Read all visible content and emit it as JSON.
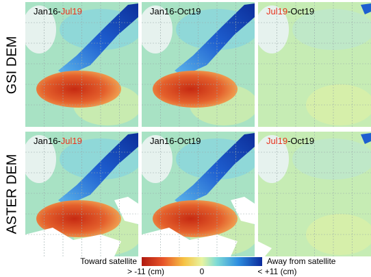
{
  "row_labels": [
    "GSI DEM",
    "ASTER DEM"
  ],
  "panels": [
    {
      "label": [
        {
          "text": "Jan16-",
          "color": "#000000"
        },
        {
          "text": "Jul19",
          "color": "#e8321e"
        }
      ]
    },
    {
      "label": [
        {
          "text": "Jan16-Oct19",
          "color": "#000000"
        }
      ]
    },
    {
      "label": [
        {
          "text": "Jul19",
          "color": "#e8321e"
        },
        {
          "text": "-Oct19",
          "color": "#000000"
        }
      ]
    },
    {
      "label": [
        {
          "text": "Jan16-",
          "color": "#000000"
        },
        {
          "text": "Jul19",
          "color": "#e8321e"
        }
      ]
    },
    {
      "label": [
        {
          "text": "Jan16-Oct19",
          "color": "#000000"
        }
      ]
    },
    {
      "label": [
        {
          "text": "Jul19",
          "color": "#e8321e"
        },
        {
          "text": "-Oct19",
          "color": "#000000"
        }
      ]
    }
  ],
  "colorbar": {
    "left_title": "Toward satellite",
    "right_title": "Away from satellite",
    "labels": [
      "> -11 (cm)",
      "0",
      "< +11 (cm)"
    ]
  }
}
